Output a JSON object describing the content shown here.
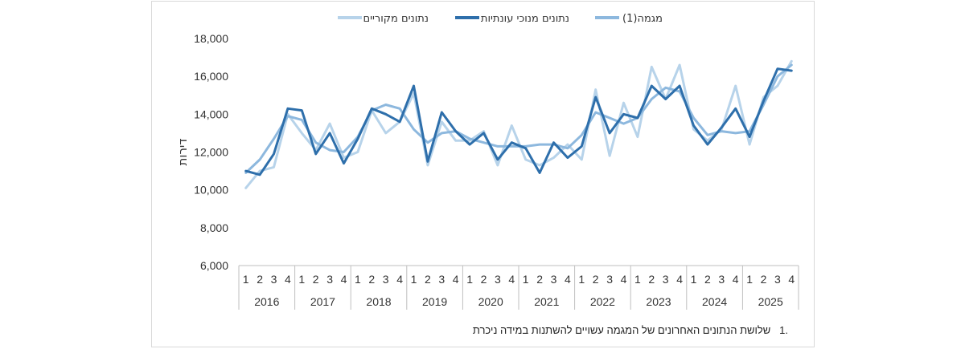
{
  "chart_data": {
    "type": "line",
    "ylabel": "דירות",
    "ylim": [
      6000,
      18000
    ],
    "yticks": [
      6000,
      8000,
      10000,
      12000,
      14000,
      16000,
      18000
    ],
    "ytick_labels": [
      "6,000",
      "8,000",
      "10,000",
      "12,000",
      "14,000",
      "16,000",
      "18,000"
    ],
    "years": [
      "2016",
      "2017",
      "2018",
      "2019",
      "2020",
      "2021",
      "2022",
      "2023",
      "2024",
      "2025"
    ],
    "quarters": [
      "1",
      "2",
      "3",
      "4"
    ],
    "legend_position": "top",
    "series": [
      {
        "name": "נתונים מקוריים",
        "color": "#b7d3ea",
        "values": [
          10100,
          11000,
          11200,
          14000,
          13000,
          12100,
          13500,
          11700,
          12000,
          14200,
          13000,
          13600,
          15100,
          11300,
          13600,
          12600,
          12600,
          13100,
          11300,
          13400,
          11600,
          11300,
          11700,
          12400,
          11600,
          15300,
          11800,
          14600,
          12800,
          16500,
          14800,
          16600,
          13200,
          12600,
          13200,
          15500,
          12400,
          14900,
          15500,
          16800
        ]
      },
      {
        "name": "נתונים מנוכי עונתיות",
        "color": "#2e6fab",
        "values": [
          11000,
          10800,
          11900,
          14300,
          14200,
          11900,
          13000,
          11400,
          12700,
          14300,
          14000,
          13600,
          15500,
          11500,
          14100,
          13100,
          12400,
          13000,
          11600,
          12500,
          12200,
          10900,
          12500,
          11700,
          12300,
          14900,
          13000,
          14000,
          13800,
          15500,
          14800,
          15500,
          13400,
          12400,
          13300,
          14300,
          12800,
          14700,
          16400,
          16300
        ]
      },
      {
        "name": "מגמה(1)",
        "color": "#8db8de",
        "values": [
          10900,
          11600,
          12700,
          13900,
          13700,
          12500,
          12100,
          12000,
          12800,
          14200,
          14500,
          14300,
          13200,
          12500,
          13000,
          13100,
          12700,
          12500,
          12300,
          12300,
          12300,
          12400,
          12400,
          12200,
          12900,
          14100,
          13800,
          13500,
          13800,
          14800,
          15400,
          15200,
          13800,
          12900,
          13100,
          13000,
          13100,
          14500,
          16000,
          16600
        ]
      }
    ]
  },
  "footnote": {
    "number": ".1",
    "text": "שלושת הנתונים האחרונים של המגמה עשויים להשתנות במידה ניכרת"
  }
}
